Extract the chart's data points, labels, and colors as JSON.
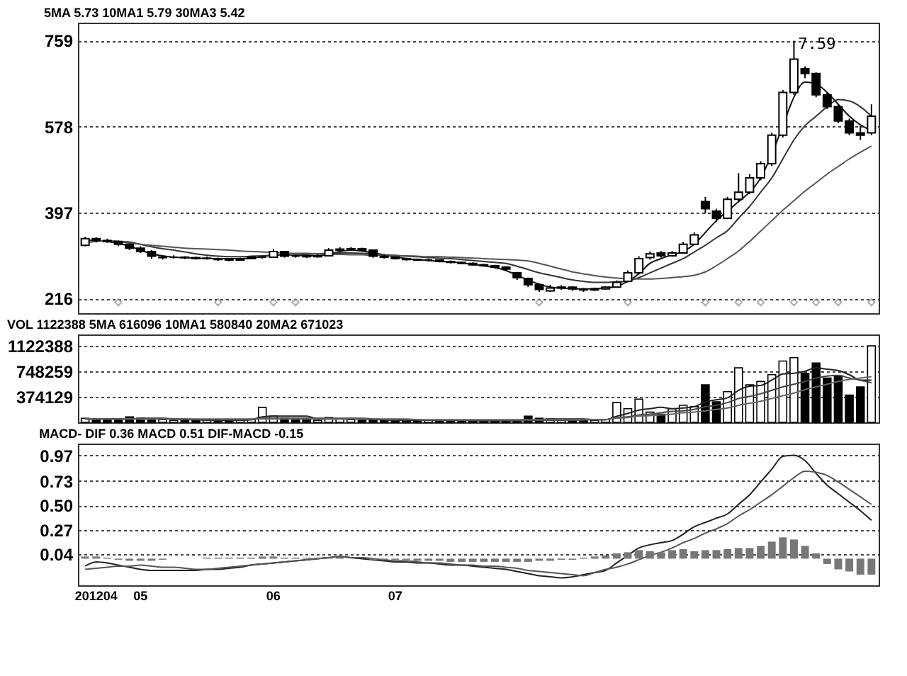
{
  "chart_data": [
    {
      "type": "candlestick",
      "title": "5MA 5.73  10MA1 5.79  30MA3 5.42",
      "ylim": [
        185,
        797
      ],
      "yticks": [
        216,
        397,
        578,
        759
      ],
      "grid": "y",
      "tick_labels": "y",
      "categories": [
        null,
        "201204",
        null,
        null,
        null,
        "05",
        null,
        null,
        null,
        null,
        null,
        null,
        null,
        null,
        null,
        null,
        null,
        "06",
        null,
        null,
        null,
        null,
        null,
        null,
        null,
        null,
        null,
        null,
        "07",
        null,
        null,
        null,
        null,
        null,
        null,
        null,
        null,
        null,
        null,
        null,
        null,
        null,
        null,
        null,
        null,
        null,
        null,
        null,
        null,
        null,
        null,
        null,
        null,
        null,
        null,
        null,
        null,
        null,
        null,
        null,
        null,
        null,
        null,
        null,
        null,
        null,
        null,
        null,
        null,
        null,
        null,
        null
      ],
      "ohlc": [
        [
          328,
          346,
          326,
          342
        ],
        [
          342,
          345,
          334,
          338
        ],
        [
          338,
          342,
          333,
          336
        ],
        [
          336,
          338,
          326,
          330
        ],
        [
          330,
          332,
          318,
          322
        ],
        [
          322,
          326,
          312,
          315
        ],
        [
          315,
          318,
          300,
          305
        ],
        [
          302,
          306,
          298,
          303
        ],
        [
          303,
          307,
          300,
          303
        ],
        [
          303,
          305,
          299,
          302
        ],
        [
          302,
          304,
          298,
          300
        ],
        [
          300,
          304,
          298,
          301
        ],
        [
          300,
          302,
          295,
          298
        ],
        [
          298,
          300,
          294,
          297
        ],
        [
          297,
          302,
          296,
          300
        ],
        [
          300,
          305,
          299,
          303
        ],
        [
          303,
          306,
          300,
          303
        ],
        [
          303,
          320,
          302,
          315
        ],
        [
          315,
          316,
          302,
          305
        ],
        [
          305,
          308,
          302,
          305
        ],
        [
          305,
          307,
          301,
          304
        ],
        [
          304,
          309,
          302,
          306
        ],
        [
          306,
          322,
          305,
          318
        ],
        [
          318,
          324,
          315,
          320
        ],
        [
          320,
          324,
          317,
          321
        ],
        [
          321,
          323,
          315,
          318
        ],
        [
          318,
          319,
          302,
          305
        ],
        [
          305,
          307,
          300,
          303
        ],
        [
          303,
          305,
          298,
          300
        ],
        [
          300,
          302,
          296,
          298
        ],
        [
          298,
          300,
          295,
          297
        ],
        [
          297,
          300,
          294,
          297
        ],
        [
          297,
          298,
          292,
          294
        ],
        [
          294,
          296,
          290,
          292
        ],
        [
          292,
          294,
          288,
          290
        ],
        [
          290,
          292,
          285,
          287
        ],
        [
          287,
          289,
          283,
          285
        ],
        [
          285,
          287,
          280,
          282
        ],
        [
          282,
          284,
          275,
          278
        ],
        [
          270,
          272,
          255,
          260
        ],
        [
          258,
          260,
          240,
          245
        ],
        [
          245,
          248,
          230,
          235
        ],
        [
          232,
          245,
          230,
          238
        ],
        [
          238,
          244,
          234,
          240
        ],
        [
          240,
          242,
          232,
          236
        ],
        [
          236,
          238,
          230,
          234
        ],
        [
          234,
          239,
          232,
          236
        ],
        [
          236,
          242,
          235,
          240
        ],
        [
          240,
          254,
          239,
          250
        ],
        [
          252,
          275,
          250,
          270
        ],
        [
          270,
          305,
          268,
          300
        ],
        [
          302,
          315,
          298,
          310
        ],
        [
          312,
          316,
          302,
          306
        ],
        [
          306,
          316,
          304,
          312
        ],
        [
          312,
          335,
          310,
          330
        ],
        [
          330,
          355,
          328,
          350
        ],
        [
          420,
          430,
          395,
          405
        ],
        [
          400,
          405,
          378,
          385
        ],
        [
          385,
          430,
          383,
          425
        ],
        [
          425,
          480,
          420,
          440
        ],
        [
          440,
          478,
          436,
          470
        ],
        [
          470,
          505,
          465,
          500
        ],
        [
          500,
          565,
          495,
          560
        ],
        [
          560,
          655,
          555,
          650
        ],
        [
          650,
          759,
          645,
          720
        ],
        [
          700,
          705,
          680,
          690
        ],
        [
          690,
          692,
          640,
          645
        ],
        [
          645,
          650,
          615,
          620
        ],
        [
          620,
          625,
          585,
          590
        ],
        [
          590,
          595,
          560,
          565
        ],
        [
          565,
          580,
          550,
          560
        ],
        [
          565,
          625,
          560,
          600
        ]
      ],
      "series": [
        {
          "type": "line",
          "color": "#111111",
          "values": [
            340,
            338,
            336,
            332,
            326,
            318,
            310,
            306,
            303,
            302,
            301,
            300,
            300,
            300,
            300,
            301,
            304,
            307,
            308,
            307,
            306,
            306,
            310,
            315,
            318,
            316,
            312,
            308,
            304,
            300,
            298,
            296,
            294,
            293,
            291,
            288,
            285,
            281,
            275,
            265,
            255,
            246,
            240,
            238,
            237,
            236,
            237,
            238,
            242,
            252,
            268,
            290,
            300,
            308,
            315,
            330,
            355,
            380,
            400,
            420,
            440,
            470,
            520,
            580,
            640,
            672,
            668,
            650,
            625,
            600,
            582,
            570
          ]
        },
        {
          "type": "line",
          "color": "#333333",
          "values": [
            338,
            338,
            337,
            336,
            335,
            330,
            325,
            321,
            318,
            314,
            310,
            307,
            305,
            304,
            304,
            305,
            306,
            307,
            307,
            308,
            309,
            310,
            311,
            312,
            312,
            311,
            310,
            308,
            307,
            305,
            304,
            302,
            301,
            300,
            298,
            296,
            294,
            292,
            290,
            284,
            277,
            270,
            265,
            260,
            255,
            252,
            250,
            250,
            251,
            253,
            260,
            270,
            280,
            290,
            300,
            314,
            328,
            344,
            359,
            385,
            410,
            440,
            470,
            510,
            550,
            580,
            600,
            620,
            635,
            632,
            620,
            600
          ]
        },
        {
          "type": "line",
          "color": "#555555",
          "values": [
            333,
            336,
            338,
            336,
            333,
            330,
            328,
            326,
            324,
            322,
            321,
            320,
            319,
            318,
            316,
            315,
            314,
            313,
            312,
            311,
            311,
            310,
            309,
            309,
            308,
            308,
            307,
            307,
            306,
            306,
            305,
            304,
            304,
            303,
            302,
            301,
            300,
            299,
            298,
            297,
            295,
            290,
            284,
            278,
            272,
            268,
            264,
            261,
            259,
            258,
            257,
            257,
            258,
            260,
            262,
            265,
            272,
            285,
            300,
            316,
            336,
            358,
            380,
            402,
            422,
            442,
            460,
            478,
            494,
            510,
            524,
            537
          ]
        },
        {
          "type": "scatter",
          "color": "#888888",
          "marker": "diamond",
          "values": [
            null,
            null,
            null,
            208,
            null,
            null,
            null,
            null,
            null,
            null,
            null,
            null,
            208,
            null,
            null,
            null,
            null,
            208,
            null,
            208,
            null,
            null,
            null,
            null,
            null,
            null,
            null,
            null,
            null,
            null,
            null,
            null,
            null,
            null,
            null,
            null,
            null,
            null,
            null,
            null,
            null,
            208,
            null,
            null,
            null,
            null,
            null,
            null,
            null,
            208,
            null,
            null,
            null,
            null,
            null,
            null,
            208,
            null,
            null,
            208,
            null,
            208,
            null,
            null,
            208,
            null,
            208,
            null,
            208,
            null,
            null,
            208
          ]
        }
      ],
      "annotations": [
        "7.59"
      ]
    },
    {
      "type": "bar",
      "title": "VOL 1122388  5MA 616096  10MA1 580840  20MA2 671023",
      "ylim": [
        0,
        1290000
      ],
      "yticks": [
        374129,
        748259,
        1122388
      ],
      "grid": "y",
      "tick_labels": "y",
      "categories": [
        null,
        "201204",
        null,
        null,
        null,
        "05",
        null,
        null,
        null,
        null,
        null,
        null,
        null,
        null,
        null,
        null,
        null,
        "06",
        null,
        null,
        null,
        null,
        null,
        null,
        null,
        null,
        null,
        null,
        "07",
        null,
        null,
        null,
        null,
        null,
        null,
        null,
        null,
        null,
        null,
        null,
        null,
        null,
        null,
        null,
        null,
        null,
        null,
        null,
        null,
        null,
        null,
        null,
        null,
        null,
        null,
        null,
        null,
        null,
        null,
        null,
        null,
        null,
        null,
        null,
        null,
        null,
        null,
        null,
        null,
        null,
        null,
        null
      ],
      "values": [
        60000,
        40000,
        40000,
        50000,
        80000,
        60000,
        50000,
        40000,
        30000,
        30000,
        30000,
        30000,
        30000,
        30000,
        40000,
        40000,
        220000,
        90000,
        60000,
        40000,
        40000,
        30000,
        70000,
        50000,
        40000,
        30000,
        40000,
        30000,
        30000,
        30000,
        30000,
        30000,
        20000,
        20000,
        20000,
        20000,
        20000,
        20000,
        10000,
        20000,
        90000,
        60000,
        50000,
        40000,
        40000,
        30000,
        30000,
        40000,
        290000,
        200000,
        340000,
        150000,
        120000,
        200000,
        250000,
        230000,
        550000,
        300000,
        450000,
        800000,
        550000,
        600000,
        700000,
        900000,
        950000,
        720000,
        870000,
        650000,
        680000,
        400000,
        520000,
        1122388
      ],
      "colors": [
        "#ffffff",
        "#000000",
        "#000000",
        "#000000",
        "#000000",
        "#000000",
        "#000000",
        "#ffffff",
        "#ffffff",
        "#000000",
        "#000000",
        "#ffffff",
        "#000000",
        "#000000",
        "#ffffff",
        "#ffffff",
        "#ffffff",
        "#ffffff",
        "#000000",
        "#000000",
        "#000000",
        "#ffffff",
        "#ffffff",
        "#ffffff",
        "#ffffff",
        "#000000",
        "#000000",
        "#000000",
        "#000000",
        "#000000",
        "#000000",
        "#ffffff",
        "#000000",
        "#000000",
        "#000000",
        "#000000",
        "#000000",
        "#000000",
        "#000000",
        "#000000",
        "#000000",
        "#000000",
        "#ffffff",
        "#ffffff",
        "#000000",
        "#000000",
        "#ffffff",
        "#ffffff",
        "#ffffff",
        "#ffffff",
        "#ffffff",
        "#ffffff",
        "#000000",
        "#ffffff",
        "#ffffff",
        "#ffffff",
        "#000000",
        "#000000",
        "#ffffff",
        "#ffffff",
        "#ffffff",
        "#ffffff",
        "#ffffff",
        "#ffffff",
        "#ffffff",
        "#000000",
        "#000000",
        "#000000",
        "#000000",
        "#000000",
        "#000000",
        "#ffffff"
      ],
      "series": [
        {
          "type": "line",
          "color": "#222222",
          "values": [
            50000,
            50000,
            50000,
            50000,
            50000,
            60000,
            60000,
            60000,
            50000,
            40000,
            40000,
            30000,
            30000,
            30000,
            30000,
            40000,
            80000,
            90000,
            90000,
            90000,
            90000,
            50000,
            50000,
            50000,
            50000,
            50000,
            40000,
            40000,
            30000,
            30000,
            30000,
            30000,
            30000,
            30000,
            30000,
            20000,
            20000,
            20000,
            20000,
            20000,
            30000,
            40000,
            50000,
            50000,
            50000,
            50000,
            40000,
            40000,
            90000,
            130000,
            180000,
            200000,
            220000,
            200000,
            210000,
            230000,
            300000,
            330000,
            360000,
            470000,
            530000,
            540000,
            620000,
            710000,
            720000,
            750000,
            800000,
            780000,
            760000,
            700000,
            620000,
            620000
          ]
        },
        {
          "type": "line",
          "color": "#444444",
          "values": [
            50000,
            50000,
            50000,
            50000,
            50000,
            50000,
            50000,
            50000,
            50000,
            50000,
            40000,
            40000,
            40000,
            40000,
            40000,
            40000,
            60000,
            60000,
            60000,
            60000,
            60000,
            60000,
            60000,
            60000,
            60000,
            60000,
            50000,
            40000,
            40000,
            40000,
            40000,
            30000,
            30000,
            30000,
            30000,
            30000,
            30000,
            30000,
            30000,
            30000,
            30000,
            30000,
            30000,
            30000,
            30000,
            40000,
            40000,
            40000,
            70000,
            80000,
            110000,
            120000,
            140000,
            160000,
            170000,
            190000,
            230000,
            250000,
            290000,
            350000,
            380000,
            420000,
            470000,
            520000,
            560000,
            600000,
            650000,
            680000,
            690000,
            650000,
            620000,
            580000
          ]
        },
        {
          "type": "line",
          "color": "#666666",
          "values": [
            50000,
            50000,
            50000,
            50000,
            50000,
            50000,
            50000,
            50000,
            50000,
            50000,
            50000,
            50000,
            50000,
            50000,
            50000,
            50000,
            50000,
            50000,
            50000,
            50000,
            50000,
            50000,
            50000,
            50000,
            50000,
            50000,
            50000,
            50000,
            50000,
            50000,
            40000,
            40000,
            40000,
            40000,
            40000,
            40000,
            40000,
            40000,
            40000,
            40000,
            40000,
            40000,
            40000,
            40000,
            40000,
            40000,
            40000,
            40000,
            60000,
            70000,
            90000,
            100000,
            110000,
            120000,
            140000,
            150000,
            170000,
            190000,
            210000,
            250000,
            280000,
            310000,
            350000,
            390000,
            430000,
            480000,
            520000,
            560000,
            600000,
            630000,
            650000,
            670000
          ]
        }
      ]
    },
    {
      "type": "line",
      "title": "MACD- DIF 0.36  MACD 0.51  DIF-MACD -0.15",
      "ylim": [
        -0.25,
        1.08
      ],
      "yticks": [
        0.04,
        0.27,
        {
          "value": 0.5,
          "label": "0.50"
        },
        0.73,
        0.97
      ],
      "grid": "y",
      "categories": [
        null,
        "201204",
        null,
        null,
        null,
        "05",
        null,
        null,
        null,
        null,
        null,
        null,
        null,
        null,
        null,
        null,
        null,
        "06",
        null,
        null,
        null,
        null,
        null,
        null,
        null,
        null,
        null,
        null,
        "07",
        null,
        null,
        null,
        null,
        null,
        null,
        null,
        null,
        null,
        null,
        null,
        null,
        null,
        null,
        null,
        null,
        null,
        null,
        null,
        null,
        null,
        null,
        null,
        null,
        null,
        null,
        null,
        null,
        null,
        null,
        null,
        null,
        null,
        null,
        null,
        null,
        null,
        null,
        null,
        null,
        null,
        null,
        null
      ],
      "series": [
        {
          "type": "line",
          "color": "#222222",
          "values": [
            -0.07,
            -0.03,
            -0.04,
            -0.06,
            -0.08,
            -0.1,
            -0.11,
            -0.11,
            -0.11,
            -0.11,
            -0.11,
            -0.1,
            -0.1,
            -0.09,
            -0.08,
            -0.06,
            -0.05,
            -0.04,
            -0.03,
            -0.02,
            -0.01,
            0.0,
            0.01,
            0.02,
            0.01,
            0.0,
            -0.01,
            -0.02,
            -0.03,
            -0.03,
            -0.04,
            -0.04,
            -0.05,
            -0.06,
            -0.06,
            -0.07,
            -0.08,
            -0.09,
            -0.1,
            -0.12,
            -0.14,
            -0.16,
            -0.17,
            -0.18,
            -0.17,
            -0.15,
            -0.13,
            -0.11,
            -0.04,
            0.03,
            0.1,
            0.13,
            0.15,
            0.17,
            0.23,
            0.3,
            0.34,
            0.38,
            0.42,
            0.51,
            0.6,
            0.72,
            0.84,
            0.96,
            0.97,
            0.92,
            0.8,
            0.69,
            0.61,
            0.53,
            0.45,
            0.36
          ]
        },
        {
          "type": "line",
          "color": "#555555",
          "values": [
            -0.1,
            -0.09,
            -0.08,
            -0.07,
            -0.07,
            -0.06,
            -0.07,
            -0.08,
            -0.08,
            -0.09,
            -0.1,
            -0.1,
            -0.09,
            -0.08,
            -0.07,
            -0.06,
            -0.05,
            -0.04,
            -0.03,
            -0.02,
            -0.01,
            0.0,
            0.01,
            0.02,
            0.01,
            0.01,
            0.0,
            -0.01,
            -0.02,
            -0.02,
            -0.03,
            -0.04,
            -0.04,
            -0.05,
            -0.06,
            -0.06,
            -0.07,
            -0.07,
            -0.08,
            -0.09,
            -0.11,
            -0.12,
            -0.13,
            -0.14,
            -0.15,
            -0.16,
            -0.13,
            -0.1,
            -0.08,
            -0.05,
            -0.01,
            0.03,
            0.06,
            0.1,
            0.15,
            0.19,
            0.24,
            0.28,
            0.33,
            0.4,
            0.46,
            0.53,
            0.6,
            0.68,
            0.76,
            0.82,
            0.81,
            0.78,
            0.72,
            0.65,
            0.58,
            0.51
          ]
        },
        {
          "type": "bar",
          "color": "#777777",
          "values": [
            0.02,
            0.02,
            0.01,
            -0.01,
            -0.02,
            -0.02,
            -0.02,
            -0.01,
            0,
            0,
            0,
            0.01,
            0.01,
            0.01,
            0.01,
            0.01,
            0.02,
            0.02,
            0.01,
            0.01,
            0.01,
            0.01,
            0.01,
            0.01,
            0,
            0,
            -0.01,
            -0.01,
            -0.01,
            -0.01,
            -0.02,
            -0.02,
            -0.02,
            -0.03,
            -0.03,
            -0.03,
            -0.03,
            -0.03,
            -0.03,
            -0.03,
            -0.03,
            -0.02,
            -0.02,
            -0.01,
            -0.01,
            0.01,
            0.02,
            0.03,
            0.05,
            0.06,
            0.08,
            0.07,
            0.06,
            0.08,
            0.09,
            0.07,
            0.08,
            0.08,
            0.09,
            0.1,
            0.1,
            0.12,
            0.16,
            0.2,
            0.18,
            0.12,
            0.05,
            -0.05,
            -0.1,
            -0.12,
            -0.15,
            -0.15
          ]
        }
      ]
    }
  ]
}
